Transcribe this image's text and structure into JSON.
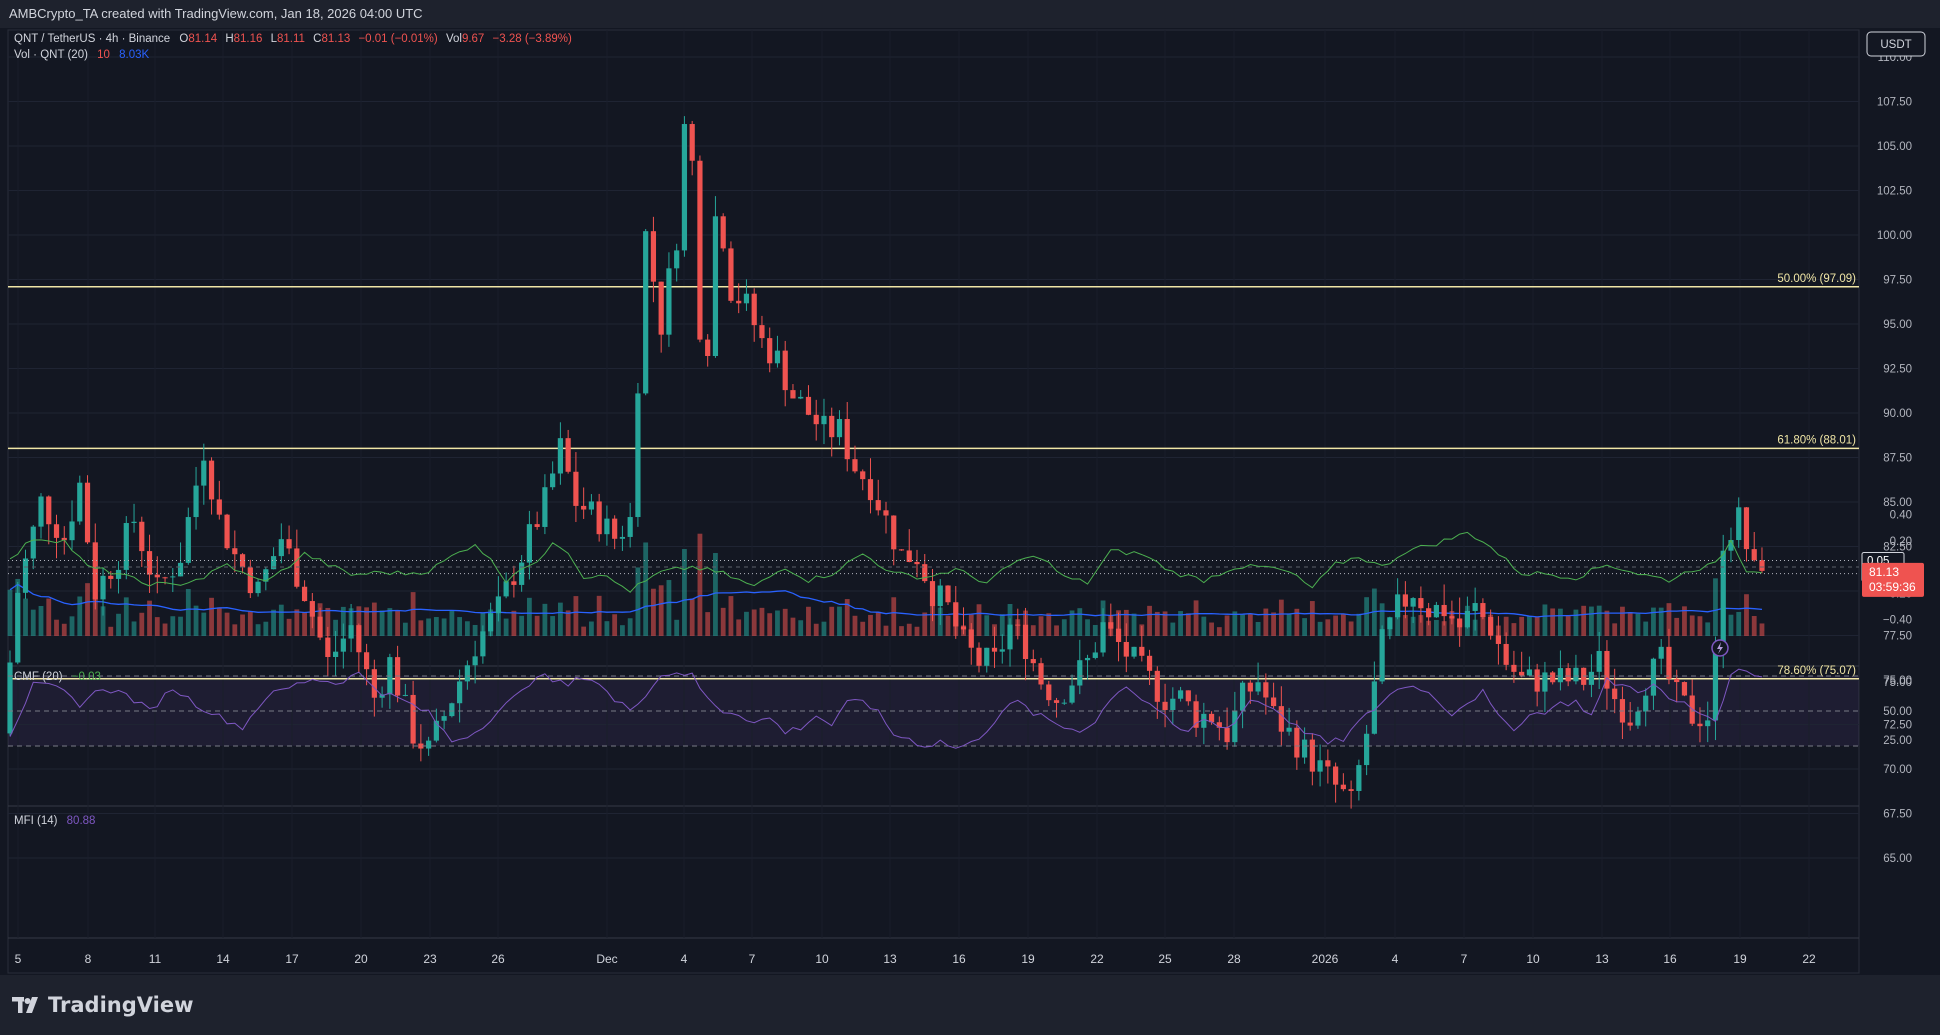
{
  "header": {
    "attribution": "AMBCrypto_TA created with TradingView.com, Jan 18, 2026 04:00 UTC"
  },
  "legend": {
    "symbol": "QNT / TetherUS · 4h · Binance",
    "o_label": "O",
    "o_value": "81.14",
    "h_label": "H",
    "h_value": "81.16",
    "l_label": "L",
    "l_value": "81.11",
    "c_label": "C",
    "c_value": "81.13",
    "change": "−0.01 (−0.01%)",
    "vol_label": "Vol",
    "vol_value": "9.67",
    "vol_change": "−3.28 (−3.89%)",
    "vol_study": "Vol · QNT (20)",
    "vol_ma_a": "10",
    "vol_ma_b": "8.03K"
  },
  "price_scale": {
    "currency": "USDT",
    "last_price": "81.13",
    "countdown": "03:59:36"
  },
  "colors": {
    "up": "#26a69a",
    "down": "#ef5350",
    "fib": "#f0e6a6",
    "vol_ma": "#2962ff",
    "cmf": "#4caf50",
    "mfi": "#7e57c2",
    "background": "#131722",
    "panel": "#1e222d"
  },
  "fib_levels": [
    {
      "label": "50.00% (97.09)",
      "value": 97.09
    },
    {
      "label": "61.80% (88.01)",
      "value": 88.01
    },
    {
      "label": "78.60% (75.07)",
      "value": 75.07
    }
  ],
  "cmf": {
    "title": "CMF (20)",
    "value": "−0.03",
    "ticks": [
      "0.40",
      "0.20",
      "−0.20",
      "−0.40"
    ],
    "levels": [
      0.05,
      -0.05
    ],
    "level_labels": [
      "0.05",
      "−0.05"
    ],
    "ylim": [
      -0.4,
      0.4
    ]
  },
  "mfi": {
    "title": "MFI (14)",
    "value": "80.88",
    "ticks": [
      "75.00",
      "50.00",
      "25.00"
    ],
    "bands": [
      80,
      50,
      20
    ],
    "ylim": [
      0,
      100
    ]
  },
  "chart_data": {
    "type": "candlestick",
    "symbol": "QNT / TetherUS",
    "timeframe": "4h",
    "ylim": [
      63,
      111
    ],
    "y_ticks": [
      "110.00",
      "107.50",
      "105.00",
      "102.50",
      "100.00",
      "97.50",
      "95.00",
      "92.50",
      "90.00",
      "87.50",
      "85.00",
      "82.50",
      "80.00",
      "77.50",
      "75.00",
      "72.50",
      "70.00",
      "67.50",
      "65.00"
    ],
    "x_ticks": [
      "5",
      "8",
      "11",
      "14",
      "17",
      "20",
      "23",
      "26",
      "Dec",
      "4",
      "7",
      "10",
      "13",
      "16",
      "19",
      "22",
      "25",
      "28",
      "2026",
      "4",
      "7",
      "10",
      "13",
      "16",
      "19",
      "22"
    ],
    "price_path": [
      [
        0,
        72
      ],
      [
        2,
        80
      ],
      [
        5,
        85
      ],
      [
        8,
        83
      ],
      [
        10,
        86
      ],
      [
        12,
        80
      ],
      [
        15,
        82
      ],
      [
        17,
        84
      ],
      [
        20,
        80
      ],
      [
        23,
        82
      ],
      [
        26,
        88
      ],
      [
        28,
        84
      ],
      [
        30,
        82
      ],
      [
        33,
        80
      ],
      [
        36,
        83
      ],
      [
        39,
        80
      ],
      [
        42,
        76
      ],
      [
        45,
        78
      ],
      [
        48,
        74
      ],
      [
        50,
        76
      ],
      [
        53,
        72
      ],
      [
        55,
        71
      ],
      [
        58,
        74
      ],
      [
        61,
        77
      ],
      [
        64,
        79
      ],
      [
        67,
        82
      ],
      [
        70,
        85
      ],
      [
        72,
        88
      ],
      [
        74,
        85
      ],
      [
        77,
        84
      ],
      [
        79,
        83
      ],
      [
        81,
        84
      ],
      [
        83,
        100
      ],
      [
        85,
        95
      ],
      [
        87,
        100
      ],
      [
        88,
        106
      ],
      [
        89,
        104
      ],
      [
        90,
        95
      ],
      [
        91,
        94
      ],
      [
        92,
        101
      ],
      [
        93,
        100
      ],
      [
        94,
        97
      ],
      [
        96,
        96
      ],
      [
        98,
        94
      ],
      [
        100,
        93
      ],
      [
        102,
        91
      ],
      [
        104,
        90
      ],
      [
        106,
        89
      ],
      [
        108,
        89
      ],
      [
        110,
        87
      ],
      [
        112,
        86
      ],
      [
        114,
        84
      ],
      [
        116,
        82
      ],
      [
        118,
        82
      ],
      [
        120,
        80
      ],
      [
        122,
        79
      ],
      [
        124,
        77
      ],
      [
        126,
        76
      ],
      [
        128,
        76
      ],
      [
        130,
        78
      ],
      [
        132,
        77
      ],
      [
        134,
        75
      ],
      [
        136,
        74
      ],
      [
        138,
        75
      ],
      [
        140,
        76
      ],
      [
        142,
        78
      ],
      [
        144,
        77
      ],
      [
        146,
        76
      ],
      [
        148,
        75
      ],
      [
        150,
        74
      ],
      [
        152,
        74
      ],
      [
        154,
        73
      ],
      [
        156,
        73
      ],
      [
        158,
        72
      ],
      [
        160,
        74
      ],
      [
        162,
        75
      ],
      [
        164,
        73
      ],
      [
        166,
        72
      ],
      [
        168,
        71
      ],
      [
        170,
        70
      ],
      [
        172,
        69
      ],
      [
        174,
        68
      ],
      [
        176,
        72
      ],
      [
        178,
        77
      ],
      [
        180,
        79
      ],
      [
        182,
        80
      ],
      [
        184,
        79
      ],
      [
        186,
        79
      ],
      [
        188,
        78
      ],
      [
        190,
        79
      ],
      [
        192,
        78
      ],
      [
        194,
        76
      ],
      [
        196,
        75
      ],
      [
        198,
        75
      ],
      [
        200,
        75
      ],
      [
        202,
        75
      ],
      [
        204,
        75
      ],
      [
        206,
        76
      ],
      [
        208,
        74
      ],
      [
        210,
        73
      ],
      [
        212,
        75
      ],
      [
        214,
        76
      ],
      [
        216,
        74
      ],
      [
        218,
        73
      ],
      [
        220,
        73
      ],
      [
        221,
        76
      ],
      [
        222,
        83
      ],
      [
        224,
        84
      ],
      [
        226,
        81
      ]
    ],
    "last": 81.13,
    "cmf_path": [
      [
        0,
        0.05
      ],
      [
        3,
        0.22
      ],
      [
        7,
        0.2
      ],
      [
        10,
        0.0
      ],
      [
        14,
        -0.05
      ],
      [
        17,
        -0.12
      ],
      [
        21,
        -0.14
      ],
      [
        25,
        -0.08
      ],
      [
        28,
        0.02
      ],
      [
        30,
        -0.05
      ],
      [
        32,
        -0.1
      ],
      [
        34,
        -0.08
      ],
      [
        38,
        0.1
      ],
      [
        41,
        0.02
      ],
      [
        44,
        -0.06
      ],
      [
        48,
        -0.04
      ],
      [
        51,
        -0.05
      ],
      [
        54,
        -0.03
      ],
      [
        57,
        0.08
      ],
      [
        60,
        0.18
      ],
      [
        62,
        0.05
      ],
      [
        64,
        -0.1
      ],
      [
        66,
        0.0
      ],
      [
        68,
        0.02
      ],
      [
        70,
        0.2
      ],
      [
        72,
        0.12
      ],
      [
        74,
        -0.08
      ],
      [
        76,
        -0.05
      ],
      [
        80,
        -0.18
      ],
      [
        84,
        -0.04
      ],
      [
        88,
        0.0
      ],
      [
        92,
        -0.05
      ],
      [
        96,
        -0.15
      ],
      [
        100,
        0.0
      ],
      [
        103,
        -0.1
      ],
      [
        106,
        -0.05
      ],
      [
        110,
        0.1
      ],
      [
        114,
        -0.05
      ],
      [
        118,
        -0.08
      ],
      [
        122,
        -0.02
      ],
      [
        126,
        -0.12
      ],
      [
        130,
        0.05
      ],
      [
        133,
        0.08
      ],
      [
        136,
        -0.08
      ],
      [
        139,
        -0.12
      ],
      [
        142,
        0.12
      ],
      [
        146,
        0.1
      ],
      [
        150,
        -0.04
      ],
      [
        154,
        -0.1
      ],
      [
        158,
        0.0
      ],
      [
        162,
        0.0
      ],
      [
        165,
        -0.04
      ],
      [
        168,
        -0.16
      ],
      [
        171,
        0.02
      ],
      [
        174,
        0.08
      ],
      [
        177,
        0.0
      ],
      [
        180,
        0.12
      ],
      [
        184,
        0.18
      ],
      [
        188,
        0.26
      ],
      [
        190,
        0.2
      ],
      [
        192,
        0.1
      ],
      [
        195,
        -0.05
      ],
      [
        198,
        -0.05
      ],
      [
        202,
        -0.08
      ],
      [
        206,
        0.02
      ],
      [
        210,
        -0.05
      ],
      [
        214,
        -0.1
      ],
      [
        217,
        -0.02
      ],
      [
        220,
        0.02
      ],
      [
        222,
        0.2
      ],
      [
        224,
        -0.02
      ],
      [
        226,
        -0.03
      ]
    ],
    "mfi_path": [
      [
        0,
        30
      ],
      [
        3,
        72
      ],
      [
        6,
        70
      ],
      [
        9,
        56
      ],
      [
        12,
        70
      ],
      [
        15,
        64
      ],
      [
        18,
        50
      ],
      [
        21,
        70
      ],
      [
        24,
        56
      ],
      [
        27,
        45
      ],
      [
        30,
        36
      ],
      [
        33,
        62
      ],
      [
        36,
        70
      ],
      [
        39,
        78
      ],
      [
        42,
        74
      ],
      [
        45,
        82
      ],
      [
        48,
        66
      ],
      [
        51,
        58
      ],
      [
        54,
        48
      ],
      [
        57,
        24
      ],
      [
        60,
        32
      ],
      [
        63,
        50
      ],
      [
        66,
        66
      ],
      [
        68,
        82
      ],
      [
        70,
        76
      ],
      [
        72,
        72
      ],
      [
        74,
        80
      ],
      [
        76,
        74
      ],
      [
        78,
        58
      ],
      [
        80,
        52
      ],
      [
        82,
        65
      ],
      [
        84,
        80
      ],
      [
        86,
        84
      ],
      [
        88,
        80
      ],
      [
        90,
        60
      ],
      [
        92,
        50
      ],
      [
        94,
        48
      ],
      [
        96,
        40
      ],
      [
        98,
        44
      ],
      [
        100,
        32
      ],
      [
        102,
        36
      ],
      [
        104,
        46
      ],
      [
        106,
        38
      ],
      [
        108,
        56
      ],
      [
        110,
        60
      ],
      [
        112,
        48
      ],
      [
        114,
        30
      ],
      [
        116,
        26
      ],
      [
        118,
        20
      ],
      [
        120,
        24
      ],
      [
        122,
        18
      ],
      [
        124,
        22
      ],
      [
        126,
        34
      ],
      [
        128,
        50
      ],
      [
        130,
        58
      ],
      [
        132,
        48
      ],
      [
        134,
        42
      ],
      [
        136,
        36
      ],
      [
        138,
        34
      ],
      [
        140,
        40
      ],
      [
        142,
        62
      ],
      [
        144,
        72
      ],
      [
        146,
        60
      ],
      [
        148,
        52
      ],
      [
        150,
        36
      ],
      [
        152,
        32
      ],
      [
        154,
        44
      ],
      [
        156,
        36
      ],
      [
        158,
        40
      ],
      [
        160,
        60
      ],
      [
        162,
        56
      ],
      [
        164,
        48
      ],
      [
        166,
        36
      ],
      [
        168,
        30
      ],
      [
        170,
        22
      ],
      [
        172,
        26
      ],
      [
        174,
        40
      ],
      [
        176,
        52
      ],
      [
        178,
        64
      ],
      [
        180,
        72
      ],
      [
        182,
        70
      ],
      [
        184,
        60
      ],
      [
        186,
        48
      ],
      [
        188,
        58
      ],
      [
        190,
        66
      ],
      [
        192,
        44
      ],
      [
        194,
        36
      ],
      [
        196,
        46
      ],
      [
        198,
        50
      ],
      [
        200,
        56
      ],
      [
        202,
        58
      ],
      [
        204,
        46
      ],
      [
        206,
        76
      ],
      [
        208,
        72
      ],
      [
        210,
        68
      ],
      [
        212,
        72
      ],
      [
        214,
        60
      ],
      [
        216,
        56
      ],
      [
        218,
        48
      ],
      [
        220,
        44
      ],
      [
        221,
        56
      ],
      [
        222,
        84
      ],
      [
        224,
        84
      ],
      [
        226,
        81
      ]
    ]
  }
}
